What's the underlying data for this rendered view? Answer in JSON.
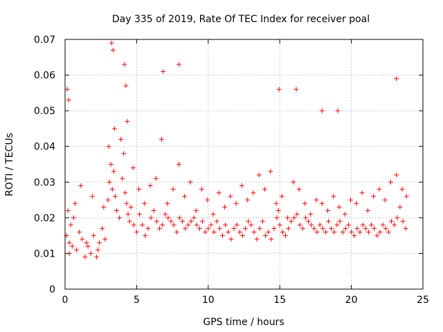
{
  "chart_data": {
    "type": "scatter",
    "title": "Day 335 of 2019, Rate Of TEC Index for receiver poal",
    "xlabel": "GPS time / hours",
    "ylabel": "ROTI / TECUs",
    "xlim": [
      0,
      25
    ],
    "ylim": [
      0,
      0.07
    ],
    "xticks": [
      0,
      5,
      10,
      15,
      20,
      25
    ],
    "xtick_labels": [
      "0",
      "5",
      "10",
      "15",
      "20",
      "25"
    ],
    "yticks": [
      0,
      0.01,
      0.02,
      0.03,
      0.04,
      0.05,
      0.06,
      0.07
    ],
    "ytick_labels": [
      "0",
      "0.01",
      "0.02",
      "0.03",
      "0.04",
      "0.05",
      "0.06",
      "0.07"
    ],
    "grid": true,
    "marker": "plus",
    "color": "#ff0000",
    "series": [
      {
        "x": [
          0.1,
          0.2,
          0.3,
          0.4,
          0.5,
          0.6,
          0.8,
          1.0,
          1.2,
          1.4,
          1.6,
          1.8,
          2.0,
          2.2,
          2.4,
          2.6,
          2.8,
          3.0,
          3.1,
          3.2,
          3.3,
          3.4,
          3.5,
          3.6,
          3.8,
          4.0,
          4.1,
          4.2,
          4.3,
          4.4,
          4.5,
          4.6,
          4.8,
          5.0,
          5.2,
          5.4,
          5.6,
          5.8,
          6.0,
          6.2,
          6.4,
          6.6,
          6.8,
          7.0,
          7.2,
          7.4,
          7.6,
          7.8,
          8.0,
          8.2,
          8.4,
          8.6,
          8.8,
          9.0,
          9.2,
          9.4,
          9.6,
          9.8,
          10.0,
          10.2,
          10.4,
          10.6,
          10.8,
          11.0,
          11.2,
          11.4,
          11.6,
          11.8,
          12.0,
          12.2,
          12.4,
          12.6,
          12.8,
          13.0,
          13.2,
          13.4,
          13.6,
          13.8,
          14.0,
          14.2,
          14.4,
          14.6,
          14.8,
          14.9,
          15.0,
          15.2,
          15.4,
          15.6,
          15.8,
          16.0,
          16.2,
          16.4,
          16.6,
          16.8,
          17.0,
          17.2,
          17.4,
          17.6,
          17.8,
          18.0,
          18.2,
          18.4,
          18.6,
          18.8,
          19.0,
          19.2,
          19.4,
          19.6,
          19.8,
          20.0,
          20.2,
          20.4,
          20.6,
          20.8,
          21.0,
          21.2,
          21.4,
          21.6,
          21.8,
          22.0,
          22.2,
          22.4,
          22.6,
          22.8,
          23.0,
          23.2,
          23.4,
          23.6,
          23.8,
          0.15,
          0.25,
          3.25,
          3.35,
          4.15,
          4.25,
          6.85,
          7.95,
          14.95,
          16.15,
          17.95,
          19.05,
          23.15,
          0.3,
          0.7,
          1.1,
          1.5,
          1.9,
          2.3,
          2.7,
          3.05,
          3.45,
          3.9,
          4.35,
          4.75,
          5.15,
          5.55,
          5.95,
          6.35,
          6.75,
          7.15,
          7.55,
          7.95,
          8.35,
          8.75,
          9.15,
          9.55,
          9.95,
          10.35,
          10.75,
          11.15,
          11.55,
          11.95,
          12.35,
          12.75,
          13.15,
          13.55,
          13.95,
          14.35,
          14.75,
          15.15,
          15.55,
          15.95,
          16.35,
          16.75,
          17.15,
          17.55,
          17.95,
          18.35,
          18.75,
          19.15,
          19.55,
          19.95,
          20.35,
          20.75,
          21.15,
          21.55,
          21.95,
          22.35,
          22.75,
          23.15,
          23.55,
          23.85
        ],
        "y": [
          0.015,
          0.022,
          0.013,
          0.018,
          0.012,
          0.02,
          0.011,
          0.016,
          0.014,
          0.009,
          0.012,
          0.01,
          0.015,
          0.009,
          0.013,
          0.017,
          0.014,
          0.025,
          0.03,
          0.035,
          0.028,
          0.033,
          0.026,
          0.022,
          0.02,
          0.031,
          0.038,
          0.027,
          0.024,
          0.021,
          0.019,
          0.023,
          0.018,
          0.016,
          0.021,
          0.018,
          0.015,
          0.017,
          0.02,
          0.022,
          0.019,
          0.017,
          0.018,
          0.021,
          0.02,
          0.019,
          0.018,
          0.016,
          0.02,
          0.019,
          0.017,
          0.018,
          0.019,
          0.02,
          0.018,
          0.017,
          0.019,
          0.016,
          0.017,
          0.018,
          0.016,
          0.019,
          0.017,
          0.015,
          0.018,
          0.016,
          0.014,
          0.017,
          0.018,
          0.016,
          0.015,
          0.017,
          0.019,
          0.018,
          0.016,
          0.014,
          0.017,
          0.019,
          0.015,
          0.016,
          0.014,
          0.017,
          0.02,
          0.022,
          0.018,
          0.016,
          0.015,
          0.017,
          0.019,
          0.02,
          0.021,
          0.018,
          0.017,
          0.02,
          0.019,
          0.018,
          0.017,
          0.016,
          0.018,
          0.017,
          0.016,
          0.019,
          0.017,
          0.016,
          0.018,
          0.019,
          0.016,
          0.017,
          0.018,
          0.016,
          0.015,
          0.017,
          0.016,
          0.018,
          0.017,
          0.016,
          0.018,
          0.017,
          0.015,
          0.016,
          0.018,
          0.017,
          0.016,
          0.019,
          0.018,
          0.02,
          0.023,
          0.019,
          0.017,
          0.056,
          0.053,
          0.069,
          0.067,
          0.063,
          0.057,
          0.061,
          0.063,
          0.056,
          0.056,
          0.05,
          0.05,
          0.059,
          0.01,
          0.024,
          0.029,
          0.013,
          0.026,
          0.011,
          0.023,
          0.04,
          0.045,
          0.042,
          0.047,
          0.034,
          0.028,
          0.024,
          0.029,
          0.031,
          0.042,
          0.024,
          0.028,
          0.035,
          0.026,
          0.03,
          0.022,
          0.028,
          0.025,
          0.021,
          0.027,
          0.023,
          0.026,
          0.024,
          0.029,
          0.025,
          0.027,
          0.032,
          0.028,
          0.033,
          0.024,
          0.026,
          0.02,
          0.03,
          0.028,
          0.024,
          0.021,
          0.025,
          0.024,
          0.022,
          0.026,
          0.023,
          0.021,
          0.025,
          0.024,
          0.027,
          0.022,
          0.026,
          0.028,
          0.025,
          0.03,
          0.032,
          0.028,
          0.026
        ]
      }
    ]
  }
}
